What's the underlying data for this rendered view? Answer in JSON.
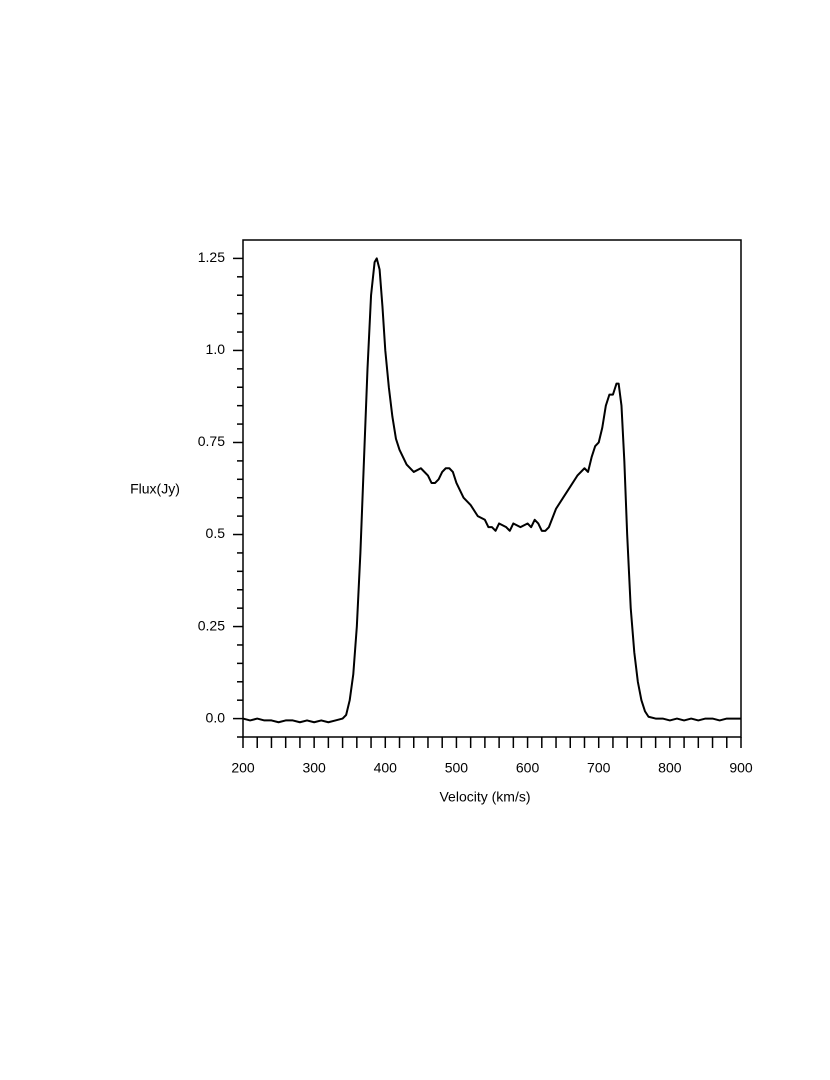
{
  "chart_data": {
    "type": "line",
    "xlabel": "Velocity (km/s)",
    "ylabel": "Flux(Jy)",
    "color": "#000000",
    "x": [
      200,
      210,
      220,
      230,
      240,
      250,
      260,
      270,
      280,
      290,
      300,
      310,
      320,
      330,
      340,
      345,
      350,
      355,
      360,
      365,
      370,
      375,
      380,
      385,
      388,
      392,
      396,
      400,
      405,
      410,
      415,
      420,
      430,
      440,
      450,
      460,
      465,
      470,
      475,
      480,
      485,
      490,
      495,
      500,
      510,
      520,
      530,
      540,
      545,
      550,
      555,
      560,
      570,
      575,
      580,
      590,
      600,
      605,
      610,
      615,
      620,
      625,
      630,
      640,
      650,
      660,
      670,
      680,
      685,
      690,
      695,
      700,
      705,
      710,
      715,
      720,
      725,
      728,
      732,
      736,
      740,
      745,
      750,
      755,
      760,
      765,
      770,
      780,
      790,
      800,
      810,
      820,
      830,
      840,
      850,
      860,
      870,
      880,
      890,
      900
    ],
    "values": [
      0.0,
      -0.005,
      0.0,
      -0.005,
      -0.005,
      -0.01,
      -0.005,
      -0.005,
      -0.01,
      -0.005,
      -0.01,
      -0.005,
      -0.01,
      -0.005,
      0.0,
      0.01,
      0.05,
      0.12,
      0.25,
      0.45,
      0.7,
      0.95,
      1.15,
      1.24,
      1.25,
      1.22,
      1.12,
      1.0,
      0.9,
      0.82,
      0.76,
      0.73,
      0.69,
      0.67,
      0.68,
      0.66,
      0.64,
      0.64,
      0.65,
      0.67,
      0.68,
      0.68,
      0.67,
      0.64,
      0.6,
      0.58,
      0.55,
      0.54,
      0.52,
      0.52,
      0.51,
      0.53,
      0.52,
      0.51,
      0.53,
      0.52,
      0.53,
      0.52,
      0.54,
      0.53,
      0.51,
      0.51,
      0.52,
      0.57,
      0.6,
      0.63,
      0.66,
      0.68,
      0.67,
      0.71,
      0.74,
      0.75,
      0.79,
      0.85,
      0.88,
      0.88,
      0.91,
      0.91,
      0.85,
      0.7,
      0.5,
      0.3,
      0.18,
      0.1,
      0.05,
      0.02,
      0.005,
      0.0,
      0.0,
      -0.005,
      0.0,
      -0.005,
      0.0,
      -0.005,
      0.0,
      0.0,
      -0.005,
      0.0,
      0.0,
      0.0
    ],
    "xlim": [
      200,
      900
    ],
    "ylim": [
      -0.05,
      1.3
    ],
    "xticks": [
      200,
      300,
      400,
      500,
      600,
      700,
      800,
      900
    ],
    "yticks": [
      {
        "value": 0,
        "label": "0.0"
      },
      0.25,
      0.5,
      0.75,
      {
        "value": 1,
        "label": "1.0"
      },
      1.25
    ],
    "xminorticks": [
      220,
      240,
      260,
      280,
      320,
      340,
      360,
      380,
      420,
      440,
      460,
      480,
      520,
      540,
      560,
      580,
      620,
      640,
      660,
      680,
      720,
      740,
      760,
      780,
      820,
      840,
      860,
      880
    ],
    "yminorticks": [
      -0.05,
      0.05,
      0.1,
      0.15,
      0.2,
      0.3,
      0.35,
      0.4,
      0.45,
      0.55,
      0.6,
      0.65,
      0.7,
      0.8,
      0.85,
      0.9,
      0.95,
      1.05,
      1.1,
      1.15,
      1.2
    ]
  }
}
